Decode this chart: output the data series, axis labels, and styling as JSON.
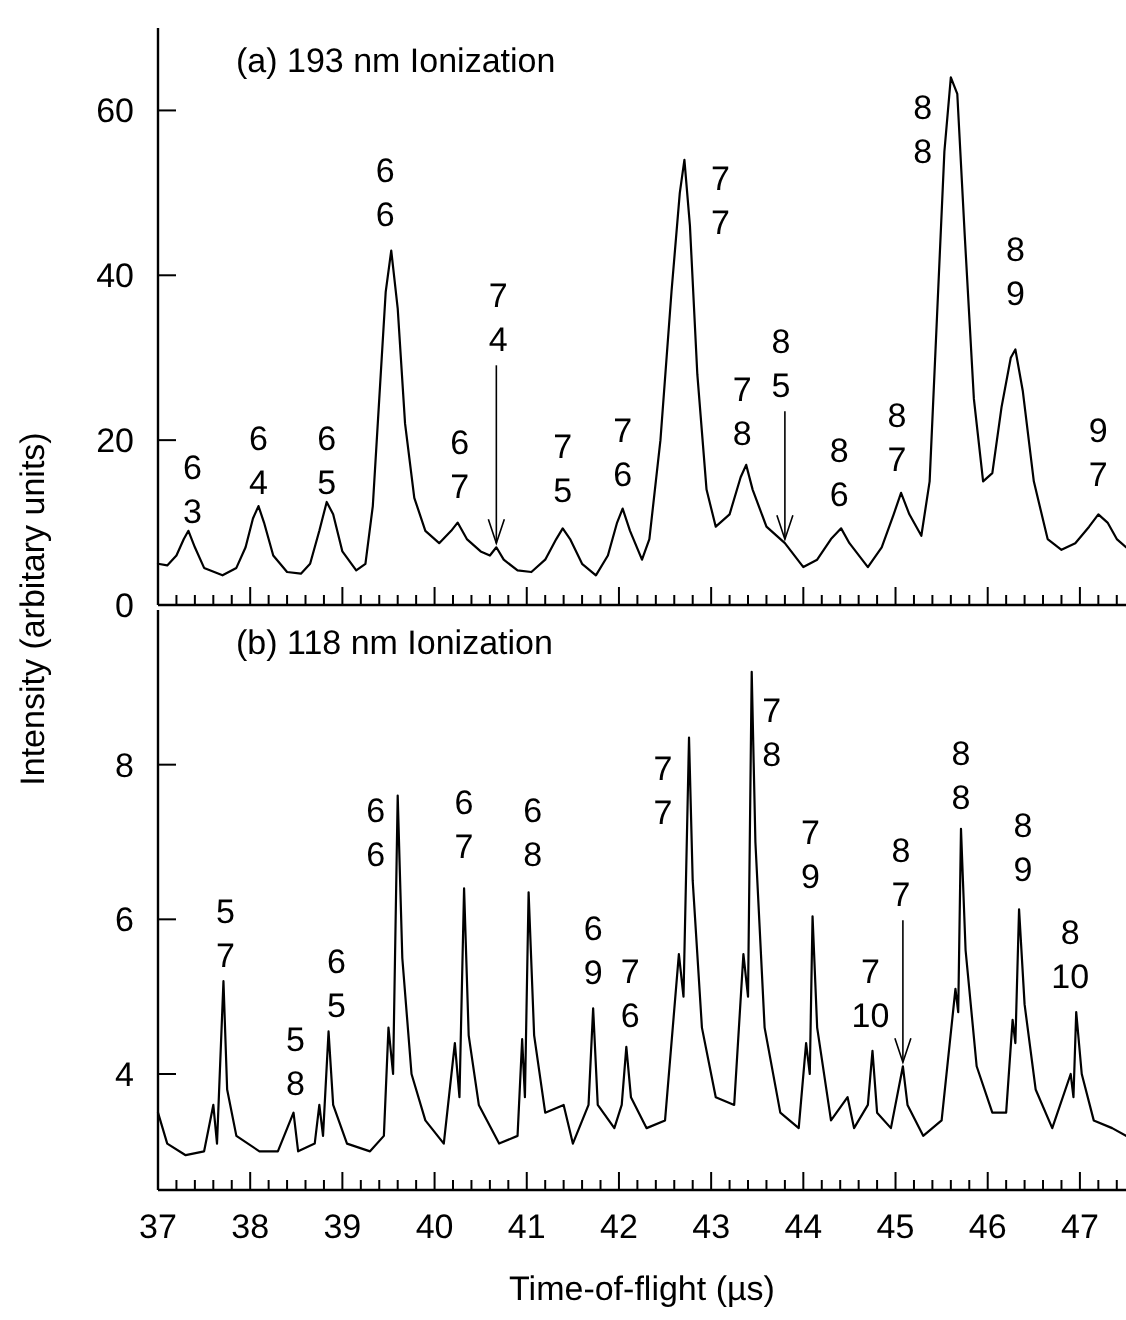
{
  "chart_data": [
    {
      "type": "line",
      "title": "(a) 193 nm Ionization",
      "ylabel": "Intensity (arbitary units)",
      "color": "#000000",
      "xlim": [
        37,
        47.5
      ],
      "ylim": [
        0,
        70
      ],
      "yticks": [
        0,
        20,
        40,
        60
      ],
      "tick_labels": "y",
      "xticks": [
        37,
        {
          "value": 37.2,
          "label": null
        },
        {
          "value": 37.4,
          "label": null
        },
        {
          "value": 37.6,
          "label": null
        },
        {
          "value": 37.8,
          "label": null
        },
        38,
        {
          "value": 38.2,
          "label": null
        },
        {
          "value": 38.4,
          "label": null
        },
        {
          "value": 38.6,
          "label": null
        },
        {
          "value": 38.8,
          "label": null
        },
        39,
        {
          "value": 39.2,
          "label": null
        },
        {
          "value": 39.4,
          "label": null
        },
        {
          "value": 39.6,
          "label": null
        },
        {
          "value": 39.8,
          "label": null
        },
        40,
        {
          "value": 40.2,
          "label": null
        },
        {
          "value": 40.4,
          "label": null
        },
        {
          "value": 40.6,
          "label": null
        },
        {
          "value": 40.8,
          "label": null
        },
        41,
        {
          "value": 41.2,
          "label": null
        },
        {
          "value": 41.4,
          "label": null
        },
        {
          "value": 41.6,
          "label": null
        },
        {
          "value": 41.8,
          "label": null
        },
        42,
        {
          "value": 42.2,
          "label": null
        },
        {
          "value": 42.4,
          "label": null
        },
        {
          "value": 42.6,
          "label": null
        },
        {
          "value": 42.8,
          "label": null
        },
        43,
        {
          "value": 43.2,
          "label": null
        },
        {
          "value": 43.4,
          "label": null
        },
        {
          "value": 43.6,
          "label": null
        },
        {
          "value": 43.8,
          "label": null
        },
        44,
        {
          "value": 44.2,
          "label": null
        },
        {
          "value": 44.4,
          "label": null
        },
        {
          "value": 44.6,
          "label": null
        },
        {
          "value": 44.8,
          "label": null
        },
        45,
        {
          "value": 45.2,
          "label": null
        },
        {
          "value": 45.4,
          "label": null
        },
        {
          "value": 45.6,
          "label": null
        },
        {
          "value": 45.8,
          "label": null
        },
        46,
        {
          "value": 46.2,
          "label": null
        },
        {
          "value": 46.4,
          "label": null
        },
        {
          "value": 46.6,
          "label": null
        },
        {
          "value": 46.8,
          "label": null
        },
        47,
        {
          "value": 47.2,
          "label": null
        },
        {
          "value": 47.4,
          "label": null
        }
      ],
      "x": [
        37.0,
        37.1,
        37.2,
        37.28,
        37.33,
        37.4,
        37.5,
        37.7,
        37.85,
        37.95,
        38.03,
        38.09,
        38.15,
        38.25,
        38.4,
        38.55,
        38.65,
        38.75,
        38.83,
        38.9,
        39.0,
        39.15,
        39.25,
        39.33,
        39.4,
        39.47,
        39.53,
        39.6,
        39.68,
        39.78,
        39.9,
        40.05,
        40.18,
        40.25,
        40.35,
        40.5,
        40.6,
        40.67,
        40.75,
        40.9,
        41.05,
        41.2,
        41.32,
        41.39,
        41.47,
        41.6,
        41.75,
        41.88,
        41.98,
        42.04,
        42.12,
        42.25,
        42.33,
        42.45,
        42.57,
        42.66,
        42.71,
        42.77,
        42.85,
        42.95,
        43.05,
        43.2,
        43.32,
        43.38,
        43.45,
        43.6,
        43.8,
        44.0,
        44.15,
        44.3,
        44.41,
        44.5,
        44.7,
        44.85,
        44.98,
        45.06,
        45.15,
        45.28,
        45.37,
        45.45,
        45.53,
        45.6,
        45.67,
        45.75,
        45.85,
        45.95,
        46.05,
        46.15,
        46.25,
        46.3,
        46.38,
        46.5,
        46.65,
        46.8,
        46.95,
        47.1,
        47.2,
        47.3,
        47.4,
        47.5
      ],
      "values": [
        5,
        4.8,
        6,
        8,
        9,
        7,
        4.5,
        3.6,
        4.5,
        7,
        10.5,
        12,
        10,
        6,
        4,
        3.8,
        5,
        9,
        12.5,
        11,
        6.5,
        4.2,
        5,
        12,
        25,
        38,
        43,
        36,
        22,
        13,
        9,
        7.5,
        9,
        10,
        8,
        6.5,
        6,
        7,
        5.5,
        4.2,
        4,
        5.5,
        8,
        9.3,
        8,
        5,
        3.6,
        6,
        10,
        11.7,
        9,
        5.5,
        8,
        20,
        38,
        50,
        54,
        46,
        28,
        14,
        9.5,
        11,
        15.5,
        17,
        14,
        9.5,
        7.5,
        4.6,
        5.5,
        8,
        9.3,
        7.5,
        4.6,
        7,
        11,
        13.6,
        11,
        8.4,
        15,
        35,
        55,
        64,
        62,
        45,
        25,
        15,
        16,
        24,
        30,
        31,
        26,
        15,
        8,
        6.7,
        7.5,
        9.5,
        11,
        10,
        8,
        7
      ],
      "annotations": [
        {
          "text": "6\n3",
          "x": 37.33,
          "y": 9
        },
        {
          "text": "6\n4",
          "x": 38.09,
          "y": 12
        },
        {
          "text": "6\n5",
          "x": 38.83,
          "y": 12.5
        },
        {
          "text": "6\n6",
          "x": 39.53,
          "y": 43
        },
        {
          "text": "6\n7",
          "x": 40.25,
          "y": 10
        },
        {
          "text": "7\n4",
          "x": 40.67,
          "y": 7
        },
        {
          "text": "7\n5",
          "x": 41.39,
          "y": 9.3
        },
        {
          "text": "7\n6",
          "x": 42.04,
          "y": 11.7
        },
        {
          "text": "7\n7",
          "x": 42.71,
          "y": 54
        },
        {
          "text": "7\n8",
          "x": 43.38,
          "y": 17
        },
        {
          "text": "8\n5",
          "x": 43.8,
          "y": 7.5
        },
        {
          "text": "8\n6",
          "x": 44.41,
          "y": 9.3
        },
        {
          "text": "8\n7",
          "x": 45.06,
          "y": 13.6
        },
        {
          "text": "8\n8",
          "x": 45.6,
          "y": 64
        },
        {
          "text": "8\n9",
          "x": 46.3,
          "y": 31
        },
        {
          "text": "9\n7",
          "x": 47.2,
          "y": 11
        }
      ]
    },
    {
      "type": "line",
      "title": "(b) 118 nm Ionization",
      "xlabel": "Time-of-flight (µs)",
      "color": "#000000",
      "xlim": [
        37,
        47.5
      ],
      "ylim": [
        2.5,
        10
      ],
      "yticks": [
        4,
        6,
        8
      ],
      "xticks": [
        37,
        {
          "value": 37.2,
          "label": null
        },
        {
          "value": 37.4,
          "label": null
        },
        {
          "value": 37.6,
          "label": null
        },
        {
          "value": 37.8,
          "label": null
        },
        38,
        {
          "value": 38.2,
          "label": null
        },
        {
          "value": 38.4,
          "label": null
        },
        {
          "value": 38.6,
          "label": null
        },
        {
          "value": 38.8,
          "label": null
        },
        39,
        {
          "value": 39.2,
          "label": null
        },
        {
          "value": 39.4,
          "label": null
        },
        {
          "value": 39.6,
          "label": null
        },
        {
          "value": 39.8,
          "label": null
        },
        40,
        {
          "value": 40.2,
          "label": null
        },
        {
          "value": 40.4,
          "label": null
        },
        {
          "value": 40.6,
          "label": null
        },
        {
          "value": 40.8,
          "label": null
        },
        41,
        {
          "value": 41.2,
          "label": null
        },
        {
          "value": 41.4,
          "label": null
        },
        {
          "value": 41.6,
          "label": null
        },
        {
          "value": 41.8,
          "label": null
        },
        42,
        {
          "value": 42.2,
          "label": null
        },
        {
          "value": 42.4,
          "label": null
        },
        {
          "value": 42.6,
          "label": null
        },
        {
          "value": 42.8,
          "label": null
        },
        43,
        {
          "value": 43.2,
          "label": null
        },
        {
          "value": 43.4,
          "label": null
        },
        {
          "value": 43.6,
          "label": null
        },
        {
          "value": 43.8,
          "label": null
        },
        44,
        {
          "value": 44.2,
          "label": null
        },
        {
          "value": 44.4,
          "label": null
        },
        {
          "value": 44.6,
          "label": null
        },
        {
          "value": 44.8,
          "label": null
        },
        45,
        {
          "value": 45.2,
          "label": null
        },
        {
          "value": 45.4,
          "label": null
        },
        {
          "value": 45.6,
          "label": null
        },
        {
          "value": 45.8,
          "label": null
        },
        46,
        {
          "value": 46.2,
          "label": null
        },
        {
          "value": 46.4,
          "label": null
        },
        {
          "value": 46.6,
          "label": null
        },
        {
          "value": 46.8,
          "label": null
        },
        47,
        {
          "value": 47.2,
          "label": null
        },
        {
          "value": 47.4,
          "label": null
        }
      ],
      "x": [
        37.0,
        37.1,
        37.3,
        37.5,
        37.6,
        37.64,
        37.71,
        37.75,
        37.85,
        38.1,
        38.3,
        38.47,
        38.52,
        38.7,
        38.75,
        38.79,
        38.85,
        38.9,
        39.05,
        39.3,
        39.45,
        39.5,
        39.55,
        39.6,
        39.65,
        39.75,
        39.9,
        40.1,
        40.22,
        40.27,
        40.32,
        40.37,
        40.48,
        40.7,
        40.9,
        40.95,
        40.98,
        41.02,
        41.08,
        41.2,
        41.4,
        41.5,
        41.67,
        41.72,
        41.77,
        41.95,
        42.03,
        42.08,
        42.13,
        42.3,
        42.5,
        42.65,
        42.7,
        42.76,
        42.8,
        42.9,
        43.05,
        43.25,
        43.35,
        43.4,
        43.44,
        43.48,
        43.58,
        43.75,
        43.95,
        44.03,
        44.07,
        44.1,
        44.15,
        44.3,
        44.48,
        44.55,
        44.7,
        44.75,
        44.8,
        44.95,
        45.08,
        45.13,
        45.3,
        45.5,
        45.65,
        45.68,
        45.71,
        45.76,
        45.88,
        46.05,
        46.2,
        46.27,
        46.3,
        46.34,
        46.4,
        46.52,
        46.7,
        46.9,
        46.93,
        46.96,
        47.02,
        47.15,
        47.35,
        47.5
      ],
      "values": [
        3.5,
        3.1,
        2.95,
        3.0,
        3.6,
        3.1,
        5.2,
        3.8,
        3.2,
        3.0,
        3.0,
        3.5,
        3.0,
        3.1,
        3.6,
        3.2,
        4.55,
        3.6,
        3.1,
        3.0,
        3.2,
        4.6,
        4.0,
        7.6,
        5.5,
        4.0,
        3.4,
        3.1,
        4.4,
        3.7,
        6.4,
        4.5,
        3.6,
        3.1,
        3.2,
        4.45,
        3.7,
        6.35,
        4.5,
        3.5,
        3.6,
        3.1,
        3.6,
        4.85,
        3.6,
        3.3,
        3.6,
        4.35,
        3.7,
        3.3,
        3.4,
        5.55,
        5.0,
        8.35,
        6.5,
        4.6,
        3.7,
        3.6,
        5.55,
        5.0,
        9.2,
        7.0,
        4.6,
        3.5,
        3.3,
        4.4,
        4.0,
        6.04,
        4.6,
        3.4,
        3.7,
        3.3,
        3.6,
        4.3,
        3.5,
        3.3,
        4.1,
        3.6,
        3.2,
        3.4,
        5.1,
        4.8,
        7.17,
        5.6,
        4.1,
        3.5,
        3.5,
        4.7,
        4.4,
        6.13,
        4.9,
        3.8,
        3.3,
        4.0,
        3.7,
        4.8,
        4.0,
        3.4,
        3.3,
        3.2
      ],
      "annotations": [
        {
          "text": "5\n7",
          "x": 37.71,
          "y": 5.2
        },
        {
          "text": "5\n8",
          "x": 38.47,
          "y": 3.5
        },
        {
          "text": "6\n5",
          "x": 38.85,
          "y": 4.55
        },
        {
          "text": "6\n6",
          "x": 39.6,
          "y": 7.6
        },
        {
          "text": "6\n7",
          "x": 40.32,
          "y": 6.4
        },
        {
          "text": "6\n8",
          "x": 41.02,
          "y": 6.35
        },
        {
          "text": "6\n9",
          "x": 41.72,
          "y": 4.85
        },
        {
          "text": "7\n6",
          "x": 42.08,
          "y": 4.35
        },
        {
          "text": "7\n7",
          "x": 42.76,
          "y": 8.35
        },
        {
          "text": "7\n8",
          "x": 43.44,
          "y": 9.2
        },
        {
          "text": "7\n9",
          "x": 44.1,
          "y": 6.04
        },
        {
          "text": "7\n10",
          "x": 44.75,
          "y": 4.3
        },
        {
          "text": "8\n7",
          "x": 45.08,
          "y": 4.1
        },
        {
          "text": "8\n8",
          "x": 45.71,
          "y": 7.17
        },
        {
          "text": "8\n9",
          "x": 46.34,
          "y": 6.13
        },
        {
          "text": "8\n10",
          "x": 46.96,
          "y": 4.8
        }
      ]
    }
  ]
}
